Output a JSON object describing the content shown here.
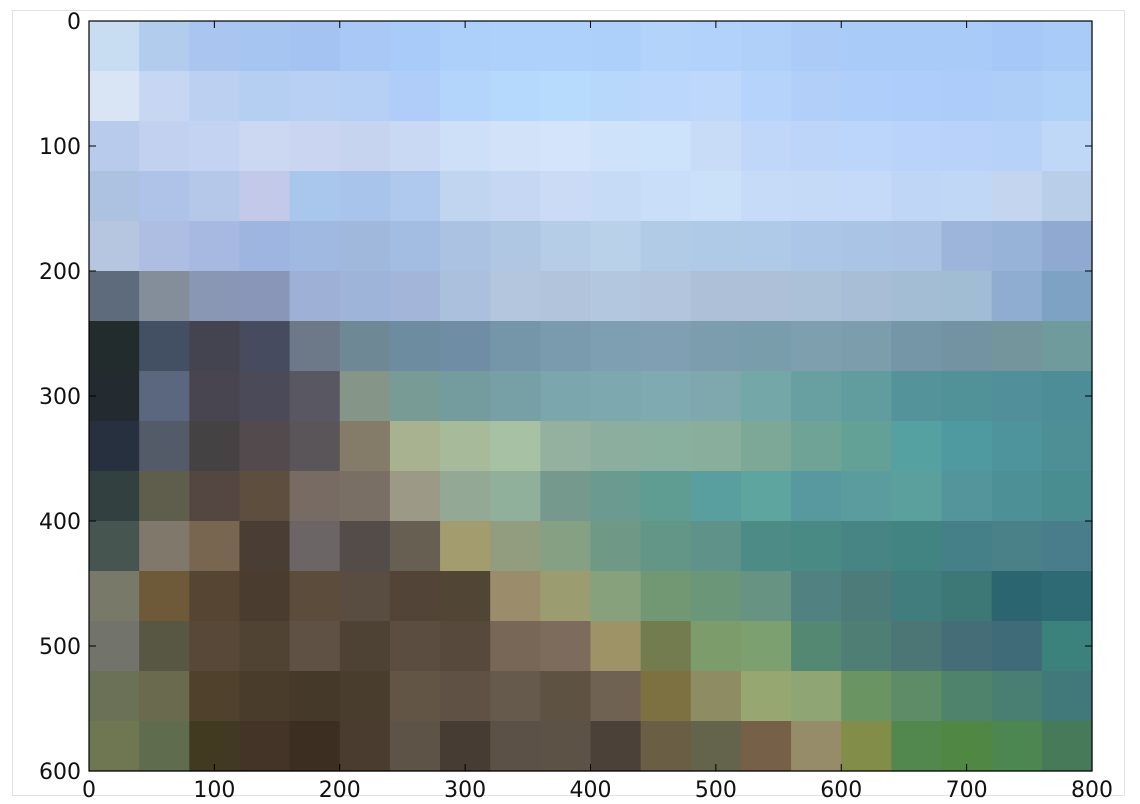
{
  "chart_data": {
    "type": "heatmap",
    "title": "",
    "xlabel": "",
    "ylabel": "",
    "xlim": [
      0,
      800
    ],
    "ylim": [
      600,
      0
    ],
    "x_ticks": [
      {
        "value": 0,
        "label": "0"
      },
      {
        "value": 100,
        "label": "100"
      },
      {
        "value": 200,
        "label": "200"
      },
      {
        "value": 300,
        "label": "300"
      },
      {
        "value": 400,
        "label": "400"
      },
      {
        "value": 500,
        "label": "500"
      },
      {
        "value": 600,
        "label": "600"
      },
      {
        "value": 700,
        "label": "700"
      },
      {
        "value": 800,
        "label": "800"
      }
    ],
    "y_ticks": [
      {
        "value": 0,
        "label": "0"
      },
      {
        "value": 100,
        "label": "100"
      },
      {
        "value": 200,
        "label": "200"
      },
      {
        "value": 300,
        "label": "300"
      },
      {
        "value": 400,
        "label": "400"
      },
      {
        "value": 500,
        "label": "500"
      },
      {
        "value": 600,
        "label": "600"
      }
    ],
    "grid": false,
    "cell_size": [
      40,
      40
    ],
    "pixel_colors": [
      [
        "#c8dcf2",
        "#b2ccee",
        "#a9c5f0",
        "#a7c5f1",
        "#a5c3f2",
        "#a9c8f5",
        "#a8cbf9",
        "#add0fb",
        "#aed1fb",
        "#aed1fb",
        "#add0fb",
        "#b3d3fb",
        "#b2d2fb",
        "#b0d0fa",
        "#acccf7",
        "#a8cbf7",
        "#a9cbf7",
        "#a9cbf8",
        "#a5c8f8",
        "#a8cbf7"
      ],
      [
        "#d9e4f5",
        "#c7d6f2",
        "#bcd0f1",
        "#b5cff3",
        "#b8d0f3",
        "#b5cff5",
        "#afcdf8",
        "#b3d4fb",
        "#b5d9fc",
        "#b7dbfc",
        "#b7d7fb",
        "#bbd7fc",
        "#bdd8fb",
        "#b6d3fb",
        "#b2cffa",
        "#b0cefa",
        "#aecdfa",
        "#adccf9",
        "#aecdf7",
        "#b1d2f8"
      ],
      [
        "#b8cbec",
        "#c1d1ef",
        "#c4d3f1",
        "#ccd8f2",
        "#cad5f1",
        "#c7d4f0",
        "#c9d8f3",
        "#cee0f8",
        "#d2e3f9",
        "#d4e4fb",
        "#cee2fa",
        "#cde2fb",
        "#c8dcf8",
        "#c1d7f9",
        "#bdd5f9",
        "#bcd5fa",
        "#bad3fa",
        "#b8d2f9",
        "#b7d2f8",
        "#bfd8f7"
      ],
      [
        "#adc2e1",
        "#afc2e7",
        "#b6c8ea",
        "#c3c9e9",
        "#a9c6ec",
        "#a8c4ea",
        "#aec9ed",
        "#c1d4f0",
        "#c6d7f3",
        "#cbdbf5",
        "#c6dcf6",
        "#c8def9",
        "#cbe1f9",
        "#c6dbf7",
        "#c4daf7",
        "#c4daf8",
        "#c0d6f7",
        "#c0d7f5",
        "#c4d6ef",
        "#b9cee9"
      ],
      [
        "#b6c5e0",
        "#aebee3",
        "#a7b8e1",
        "#9db5e0",
        "#a0b9e1",
        "#a1b8dd",
        "#a3bce1",
        "#abc2e2",
        "#b0c7e3",
        "#b6cde7",
        "#b9d1e9",
        "#b1cbe6",
        "#aecae6",
        "#aecae8",
        "#abc6e7",
        "#aac4e6",
        "#aac3e5",
        "#9db4db",
        "#98b3d8",
        "#8fa9d1"
      ],
      [
        "#5e6b7c",
        "#848d9a",
        "#8997b5",
        "#8996b7",
        "#9fb0d6",
        "#9fb4d9",
        "#a3b6da",
        "#abc0dc",
        "#b3c6dd",
        "#b2c4dc",
        "#b3c7de",
        "#b3c5dd",
        "#aec0d7",
        "#adc0d8",
        "#abc1d8",
        "#a7bed6",
        "#a2bdd4",
        "#a0bdd4",
        "#8eadd0",
        "#7ea2c4"
      ],
      [
        "#222c2c",
        "#435064",
        "#434450",
        "#474b5f",
        "#6d7989",
        "#6e8896",
        "#6e8ca0",
        "#6f8ea5",
        "#7595a9",
        "#7a9aae",
        "#7e9eb2",
        "#809fb2",
        "#7b9dad",
        "#7a9dab",
        "#7d9fae",
        "#7b9dac",
        "#7496a6",
        "#7493a2",
        "#75959c",
        "#709b9c"
      ],
      [
        "#232a30",
        "#5a677e",
        "#484450",
        "#4a4a59",
        "#595762",
        "#859587",
        "#789b95",
        "#749b9e",
        "#76a0a5",
        "#7ca6ad",
        "#7ea8b0",
        "#80aab1",
        "#7fa8ae",
        "#74a7a8",
        "#68a0a1",
        "#619d9f",
        "#55939b",
        "#519299",
        "#51909a",
        "#4c8d98"
      ],
      [
        "#27303e",
        "#535b69",
        "#454244",
        "#524a4c",
        "#5a5558",
        "#847b69",
        "#a9b290",
        "#a7bb9b",
        "#a6c1a4",
        "#94b19f",
        "#8cae9e",
        "#89af9f",
        "#8aae9c",
        "#7da898",
        "#6ea395",
        "#63a196",
        "#55a1a1",
        "#4e9aa0",
        "#4e949c",
        "#4e8f96"
      ],
      [
        "#334040",
        "#5f5e4d",
        "#544641",
        "#5e4e3e",
        "#786b63",
        "#7a6f64",
        "#9c9986",
        "#93a996",
        "#90b09b",
        "#75998c",
        "#6b9a90",
        "#5f9c91",
        "#5a9fa0",
        "#5ea59f",
        "#58999f",
        "#5b9d9e",
        "#5ba09d",
        "#53959b",
        "#4d9196",
        "#4a8d90"
      ],
      [
        "#465550",
        "#80786a",
        "#786650",
        "#4a3e34",
        "#6c6566",
        "#534c48",
        "#675f51",
        "#a39c6f",
        "#919d7e",
        "#86a083",
        "#6f9886",
        "#649687",
        "#5f9288",
        "#4d8b86",
        "#4a8a85",
        "#468584",
        "#428481",
        "#457f88",
        "#4a8087",
        "#4a7d8b"
      ],
      [
        "#79796a",
        "#6e5a39",
        "#574534",
        "#4a3c2f",
        "#5c4c3c",
        "#594c40",
        "#524436",
        "#514536",
        "#9b8c6c",
        "#9b9d70",
        "#87a17d",
        "#719873",
        "#6b9678",
        "#679383",
        "#518181",
        "#4c7b79",
        "#417d7c",
        "#3d7876",
        "#2b6670",
        "#2e6a73"
      ],
      [
        "#72736b",
        "#585744",
        "#584838",
        "#504333",
        "#5f5244",
        "#4d4233",
        "#5b4d3f",
        "#574a3d",
        "#786656",
        "#7d6c5c",
        "#9e9366",
        "#737c4e",
        "#7c9c6c",
        "#7ca070",
        "#558873",
        "#4e7e74",
        "#4b7675",
        "#446d77",
        "#3f6b78",
        "#3b827d"
      ],
      [
        "#6a7157",
        "#6a6a4f",
        "#4f412b",
        "#4a3c2a",
        "#453929",
        "#493d2d",
        "#625546",
        "#5f5244",
        "#655a4b",
        "#5e5243",
        "#706252",
        "#7d7141",
        "#8e8c63",
        "#97a772",
        "#8fa574",
        "#6a9462",
        "#5d8c66",
        "#4f836c",
        "#497f73",
        "#41797b"
      ],
      [
        "#6f7652",
        "#5f6c4e",
        "#413920",
        "#433427",
        "#3c2f22",
        "#4a3c2e",
        "#5e5347",
        "#473c33",
        "#5c5146",
        "#5d5246",
        "#4c4139",
        "#6a5e44",
        "#64634b",
        "#766148",
        "#978c6a",
        "#818d48",
        "#52884e",
        "#4f8743",
        "#4c8752",
        "#477a59"
      ]
    ]
  }
}
